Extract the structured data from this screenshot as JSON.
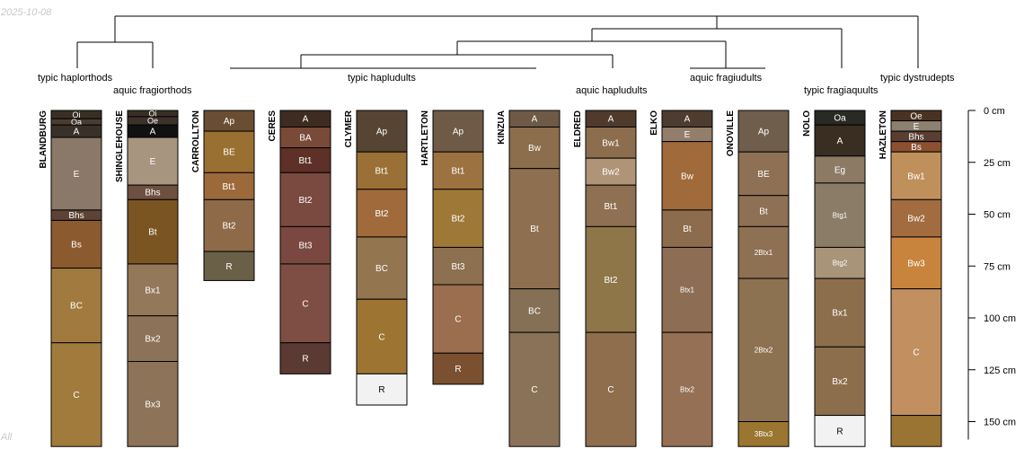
{
  "figure": {
    "date_label": "2025-10-08",
    "corner_label": "All",
    "depth_unit": "cm",
    "depth_ticks": [
      0,
      25,
      50,
      75,
      100,
      125,
      150
    ],
    "max_depth_visible": 162
  },
  "dendrogram": {
    "subgroups": [
      {
        "name": "typic haplorthods",
        "members": [
          "BLANDBURG"
        ]
      },
      {
        "name": "aquic fragiorthods",
        "members": [
          "SHINGLEHOUSE"
        ]
      },
      {
        "name": "typic hapludults",
        "members": [
          "CARROLLTON",
          "CERES",
          "CLYMER",
          "HARTLETON",
          "KINZUA"
        ]
      },
      {
        "name": "aquic hapludults",
        "members": [
          "ELDRED"
        ]
      },
      {
        "name": "aquic fragiudults",
        "members": [
          "ELKO",
          "ONOVILLE"
        ]
      },
      {
        "name": "typic fragiaquults",
        "members": [
          "NOLO"
        ]
      },
      {
        "name": "typic dystrudepts",
        "members": [
          "HAZLETON"
        ]
      }
    ]
  },
  "profiles": [
    {
      "name": "BLANDBURG",
      "horizons": [
        {
          "label": "Oi",
          "top": 0,
          "bottom": 4,
          "color": "#3a2f24"
        },
        {
          "label": "Oa",
          "top": 4,
          "bottom": 7,
          "color": "#4a3d30"
        },
        {
          "label": "A",
          "top": 7,
          "bottom": 13,
          "color": "#3a302a"
        },
        {
          "label": "E",
          "top": 13,
          "bottom": 48,
          "color": "#8a7868"
        },
        {
          "label": "Bhs",
          "top": 48,
          "bottom": 53,
          "color": "#5c4334"
        },
        {
          "label": "Bs",
          "top": 53,
          "bottom": 76,
          "color": "#8b5a2e"
        },
        {
          "label": "BC",
          "top": 76,
          "bottom": 112,
          "color": "#a07a3e"
        },
        {
          "label": "C",
          "top": 112,
          "bottom": 162,
          "color": "#a07b3c"
        }
      ]
    },
    {
      "name": "SHINGLEHOUSE",
      "horizons": [
        {
          "label": "Oi",
          "top": 0,
          "bottom": 3,
          "color": "#3a2f24"
        },
        {
          "label": "Oe",
          "top": 3,
          "bottom": 7,
          "color": "#3c322a"
        },
        {
          "label": "A",
          "top": 7,
          "bottom": 13,
          "color": "#111111"
        },
        {
          "label": "E",
          "top": 13,
          "bottom": 36,
          "color": "#a89580"
        },
        {
          "label": "Bhs",
          "top": 36,
          "bottom": 43,
          "color": "#6e5040"
        },
        {
          "label": "Bt",
          "top": 43,
          "bottom": 74,
          "color": "#7a5522"
        },
        {
          "label": "Bx1",
          "top": 74,
          "bottom": 99,
          "color": "#94785a"
        },
        {
          "label": "Bx2",
          "top": 99,
          "bottom": 121,
          "color": "#8c7358"
        },
        {
          "label": "Bx3",
          "top": 121,
          "bottom": 162,
          "color": "#8d7358"
        }
      ]
    },
    {
      "name": "CARROLLTON",
      "horizons": [
        {
          "label": "Ap",
          "top": 0,
          "bottom": 10,
          "color": "#6a4e34"
        },
        {
          "label": "BE",
          "top": 10,
          "bottom": 30,
          "color": "#9a7032"
        },
        {
          "label": "Bt1",
          "top": 30,
          "bottom": 43,
          "color": "#9c6a3a"
        },
        {
          "label": "Bt2",
          "top": 43,
          "bottom": 68,
          "color": "#8e6a48"
        },
        {
          "label": "R",
          "top": 68,
          "bottom": 82,
          "color": "#6a6048"
        }
      ]
    },
    {
      "name": "CERES",
      "horizons": [
        {
          "label": "A",
          "top": 0,
          "bottom": 8,
          "color": "#3e2c22"
        },
        {
          "label": "BA",
          "top": 8,
          "bottom": 18,
          "color": "#7a4a38"
        },
        {
          "label": "Bt1",
          "top": 18,
          "bottom": 30,
          "color": "#5e3028"
        },
        {
          "label": "Bt2",
          "top": 30,
          "bottom": 56,
          "color": "#7a4a40"
        },
        {
          "label": "Bt3",
          "top": 56,
          "bottom": 74,
          "color": "#7a4840"
        },
        {
          "label": "C",
          "top": 74,
          "bottom": 112,
          "color": "#7e4e44"
        },
        {
          "label": "R",
          "top": 112,
          "bottom": 127,
          "color": "#5a3a32"
        }
      ]
    },
    {
      "name": "CLYMER",
      "horizons": [
        {
          "label": "Ap",
          "top": 0,
          "bottom": 20,
          "color": "#574533"
        },
        {
          "label": "Bt1",
          "top": 20,
          "bottom": 38,
          "color": "#9a7036"
        },
        {
          "label": "Bt2",
          "top": 38,
          "bottom": 61,
          "color": "#a06a3a"
        },
        {
          "label": "BC",
          "top": 61,
          "bottom": 91,
          "color": "#937550"
        },
        {
          "label": "C",
          "top": 91,
          "bottom": 127,
          "color": "#9e7432"
        },
        {
          "label": "R",
          "top": 127,
          "bottom": 142,
          "color": "#f2f2f2"
        }
      ]
    },
    {
      "name": "HARTLETON",
      "horizons": [
        {
          "label": "Ap",
          "top": 0,
          "bottom": 20,
          "color": "#6e5a46"
        },
        {
          "label": "Bt1",
          "top": 20,
          "bottom": 38,
          "color": "#9c7240"
        },
        {
          "label": "Bt2",
          "top": 38,
          "bottom": 66,
          "color": "#9e7836"
        },
        {
          "label": "Bt3",
          "top": 66,
          "bottom": 84,
          "color": "#8d7050"
        },
        {
          "label": "C",
          "top": 84,
          "bottom": 117,
          "color": "#9a6e4e"
        },
        {
          "label": "R",
          "top": 117,
          "bottom": 132,
          "color": "#7a5030"
        }
      ]
    },
    {
      "name": "KINZUA",
      "horizons": [
        {
          "label": "A",
          "top": 0,
          "bottom": 8,
          "color": "#6e5a46"
        },
        {
          "label": "Bw",
          "top": 8,
          "bottom": 28,
          "color": "#8c6e4c"
        },
        {
          "label": "Bt",
          "top": 28,
          "bottom": 86,
          "color": "#8e7050"
        },
        {
          "label": "BC",
          "top": 86,
          "bottom": 107,
          "color": "#857056"
        },
        {
          "label": "C",
          "top": 107,
          "bottom": 162,
          "color": "#8a7258"
        }
      ]
    },
    {
      "name": "ELDRED",
      "horizons": [
        {
          "label": "A",
          "top": 0,
          "bottom": 8,
          "color": "#503a2c"
        },
        {
          "label": "Bw1",
          "top": 8,
          "bottom": 23,
          "color": "#8c6e4e"
        },
        {
          "label": "Bw2",
          "top": 23,
          "bottom": 36,
          "color": "#b09478"
        },
        {
          "label": "Bt1",
          "top": 36,
          "bottom": 56,
          "color": "#8f7052"
        },
        {
          "label": "Bt2",
          "top": 56,
          "bottom": 107,
          "color": "#8e7648"
        },
        {
          "label": "C",
          "top": 107,
          "bottom": 162,
          "color": "#8e6e4c"
        }
      ]
    },
    {
      "name": "ELKO",
      "horizons": [
        {
          "label": "A",
          "top": 0,
          "bottom": 8,
          "color": "#4e3c30"
        },
        {
          "label": "E",
          "top": 8,
          "bottom": 15,
          "color": "#927e6a"
        },
        {
          "label": "Bw",
          "top": 15,
          "bottom": 48,
          "color": "#a06a3a"
        },
        {
          "label": "Bt",
          "top": 48,
          "bottom": 66,
          "color": "#8c6c4c"
        },
        {
          "label": "Btx1",
          "top": 66,
          "bottom": 107,
          "color": "#8d6e54"
        },
        {
          "label": "Btx2",
          "top": 107,
          "bottom": 162,
          "color": "#957054"
        }
      ]
    },
    {
      "name": "ONOVILLE",
      "horizons": [
        {
          "label": "Ap",
          "top": 0,
          "bottom": 20,
          "color": "#705e4c"
        },
        {
          "label": "BE",
          "top": 20,
          "bottom": 41,
          "color": "#8e7054"
        },
        {
          "label": "Bt",
          "top": 41,
          "bottom": 56,
          "color": "#8e7054"
        },
        {
          "label": "2Btx1",
          "top": 56,
          "bottom": 81,
          "color": "#8e7052"
        },
        {
          "label": "2Btx2",
          "top": 81,
          "bottom": 150,
          "color": "#8d7252"
        },
        {
          "label": "3Btx3",
          "top": 150,
          "bottom": 162,
          "color": "#9a7630"
        }
      ]
    },
    {
      "name": "NOLO",
      "horizons": [
        {
          "label": "Oa",
          "top": 0,
          "bottom": 7,
          "color": "#2a2a24"
        },
        {
          "label": "A",
          "top": 7,
          "bottom": 22,
          "color": "#3a2e22"
        },
        {
          "label": "Eg",
          "top": 22,
          "bottom": 35,
          "color": "#8c7a64"
        },
        {
          "label": "Btg1",
          "top": 35,
          "bottom": 66,
          "color": "#8a7c66"
        },
        {
          "label": "Btg2",
          "top": 66,
          "bottom": 81,
          "color": "#a89478"
        },
        {
          "label": "Bx1",
          "top": 81,
          "bottom": 114,
          "color": "#8d6e4c"
        },
        {
          "label": "Bx2",
          "top": 114,
          "bottom": 147,
          "color": "#8d6e4c"
        },
        {
          "label": "R",
          "top": 147,
          "bottom": 162,
          "color": "#f2f2f2"
        }
      ]
    },
    {
      "name": "HAZLETON",
      "horizons": [
        {
          "label": "Oe",
          "top": 0,
          "bottom": 5,
          "color": "#4a3222"
        },
        {
          "label": "E",
          "top": 5,
          "bottom": 10,
          "color": "#8c8070"
        },
        {
          "label": "Bhs",
          "top": 10,
          "bottom": 15,
          "color": "#5a3e30"
        },
        {
          "label": "Bs",
          "top": 15,
          "bottom": 20,
          "color": "#8c5030"
        },
        {
          "label": "Bw1",
          "top": 20,
          "bottom": 43,
          "color": "#c0905c"
        },
        {
          "label": "Bw2",
          "top": 43,
          "bottom": 61,
          "color": "#a26c40"
        },
        {
          "label": "Bw3",
          "top": 61,
          "bottom": 86,
          "color": "#c8843c"
        },
        {
          "label": "C",
          "top": 86,
          "bottom": 147,
          "color": "#c29060"
        },
        {
          "label": "",
          "top": 147,
          "bottom": 162,
          "color": "#9a7432"
        }
      ]
    }
  ]
}
